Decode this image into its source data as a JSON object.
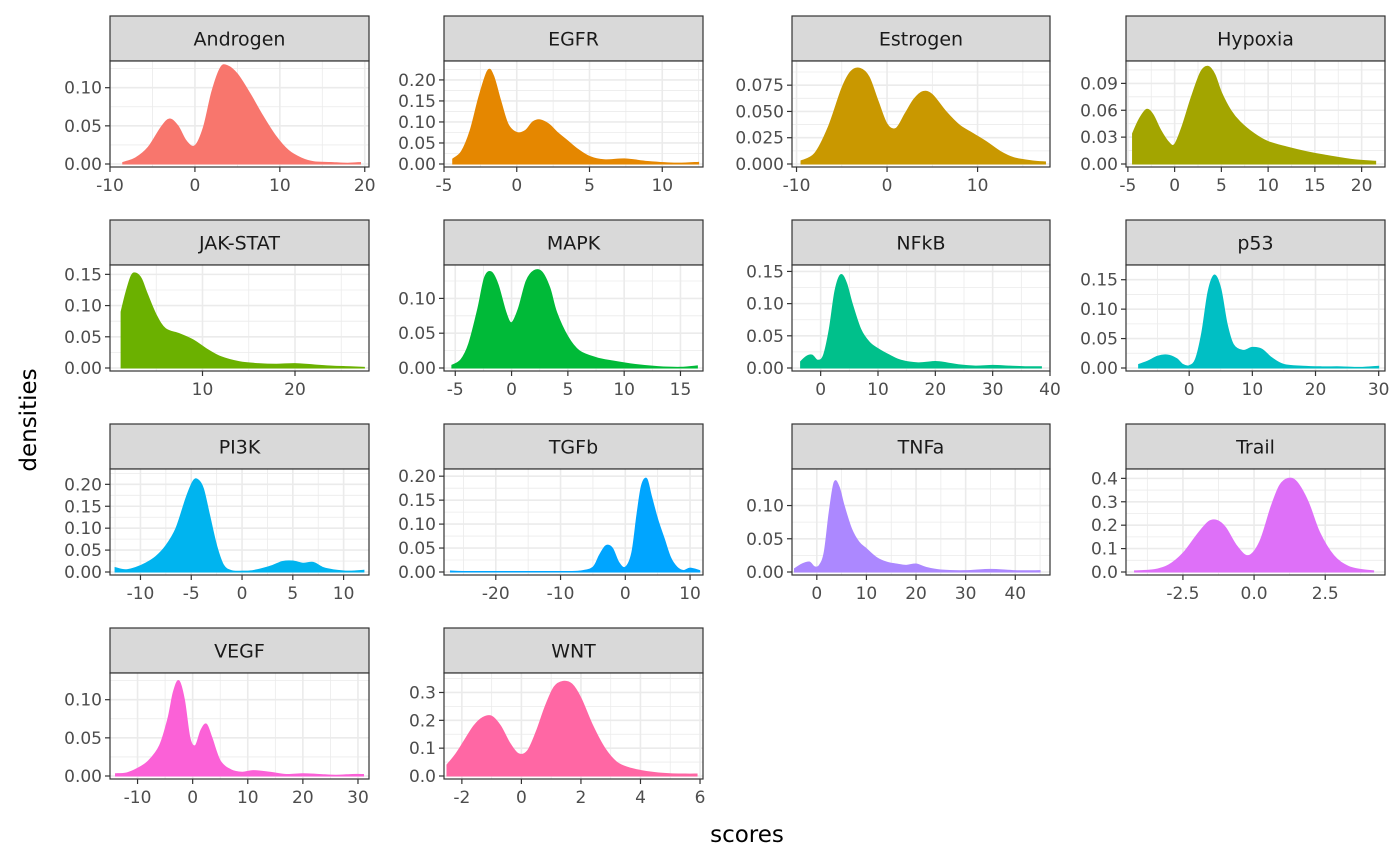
{
  "chart_data": {
    "type": "area",
    "subtype": "faceted density plot",
    "xlabel": "scores",
    "ylabel": "densities",
    "facet_layout": {
      "rows": 4,
      "cols": 4
    },
    "grid": true,
    "legend": "none",
    "panel_background": "#ffffff",
    "strip_background": "#d9d9d9",
    "grid_color": "#ebebeb",
    "panels": [
      {
        "name": "Androgen",
        "color": "#F8766D",
        "xlim": [
          -10,
          20.5
        ],
        "ylim": [
          0,
          0.135
        ],
        "xticks": [
          -10,
          0,
          10,
          20
        ],
        "xtick_labels": [
          "-10",
          "0",
          "10",
          "20"
        ],
        "yticks": [
          0,
          0.05,
          0.1
        ],
        "ytick_labels": [
          "0.00",
          "0.05",
          "0.10"
        ],
        "x": [
          -8.5,
          -7,
          -5.5,
          -4,
          -3,
          -2,
          -1,
          0,
          1,
          2,
          3,
          3.8,
          5,
          6.5,
          8,
          9.5,
          11,
          12.5,
          14,
          16,
          18,
          19.5
        ],
        "y": [
          0.002,
          0.008,
          0.022,
          0.048,
          0.059,
          0.05,
          0.03,
          0.024,
          0.048,
          0.095,
          0.126,
          0.129,
          0.118,
          0.092,
          0.063,
          0.037,
          0.018,
          0.008,
          0.003,
          0.002,
          0.001,
          0.002
        ]
      },
      {
        "name": "EGFR",
        "color": "#E58700",
        "xlim": [
          -5,
          12.8
        ],
        "ylim": [
          0,
          0.245
        ],
        "xticks": [
          -5,
          0,
          5,
          10
        ],
        "xtick_labels": [
          "-5",
          "0",
          "5",
          "10"
        ],
        "yticks": [
          0,
          0.05,
          0.1,
          0.15,
          0.2
        ],
        "ytick_labels": [
          "0.00",
          "0.05",
          "0.10",
          "0.15",
          "0.20"
        ],
        "x": [
          -4.4,
          -3.8,
          -3.2,
          -2.6,
          -2.0,
          -1.6,
          -1.1,
          -0.6,
          0,
          0.6,
          1.1,
          1.6,
          2.2,
          2.8,
          3.5,
          4.2,
          5,
          6,
          7.5,
          9,
          11,
          12.5
        ],
        "y": [
          0.012,
          0.03,
          0.08,
          0.16,
          0.222,
          0.21,
          0.15,
          0.095,
          0.075,
          0.08,
          0.1,
          0.105,
          0.095,
          0.075,
          0.055,
          0.035,
          0.018,
          0.01,
          0.012,
          0.006,
          0.002,
          0.004
        ]
      },
      {
        "name": "Estrogen",
        "color": "#C99800",
        "xlim": [
          -10.5,
          18
        ],
        "ylim": [
          0,
          0.098
        ],
        "xticks": [
          -10,
          0,
          10
        ],
        "xtick_labels": [
          "-10",
          "0",
          "10"
        ],
        "yticks": [
          0,
          0.025,
          0.05,
          0.075
        ],
        "ytick_labels": [
          "0.000",
          "0.025",
          "0.050",
          "0.075"
        ],
        "x": [
          -9.5,
          -8,
          -6.5,
          -5,
          -4,
          -3,
          -2,
          -1,
          0,
          1,
          2,
          3,
          4,
          5,
          6.5,
          8,
          9.5,
          11,
          12.5,
          14,
          16,
          17.5
        ],
        "y": [
          0.003,
          0.01,
          0.035,
          0.072,
          0.088,
          0.091,
          0.083,
          0.06,
          0.038,
          0.034,
          0.048,
          0.062,
          0.069,
          0.066,
          0.05,
          0.037,
          0.029,
          0.021,
          0.012,
          0.006,
          0.003,
          0.002
        ]
      },
      {
        "name": "Hypoxia",
        "color": "#A3A500",
        "xlim": [
          -5.2,
          22.5
        ],
        "ylim": [
          0,
          0.115
        ],
        "xticks": [
          -5,
          0,
          5,
          10,
          15,
          20
        ],
        "xtick_labels": [
          "-5",
          "0",
          "5",
          "10",
          "15",
          "20"
        ],
        "yticks": [
          0,
          0.03,
          0.06,
          0.09
        ],
        "ytick_labels": [
          "0.00",
          "0.03",
          "0.06",
          "0.09"
        ],
        "x": [
          -4.5,
          -3.8,
          -3,
          -2.3,
          -1.5,
          -0.6,
          0,
          0.8,
          1.8,
          2.8,
          3.6,
          4.3,
          5,
          6,
          7,
          8.5,
          10,
          12,
          14,
          16,
          19,
          21.5
        ],
        "y": [
          0.034,
          0.05,
          0.061,
          0.055,
          0.038,
          0.024,
          0.022,
          0.042,
          0.075,
          0.103,
          0.109,
          0.1,
          0.08,
          0.06,
          0.047,
          0.034,
          0.025,
          0.019,
          0.014,
          0.01,
          0.005,
          0.003
        ]
      },
      {
        "name": "JAK-STAT",
        "color": "#6BB100",
        "xlim": [
          0,
          28
        ],
        "ylim": [
          0,
          0.165
        ],
        "xticks": [
          10,
          20
        ],
        "xtick_labels": [
          "10",
          "20"
        ],
        "yticks": [
          0,
          0.05,
          0.1,
          0.15
        ],
        "ytick_labels": [
          "0.00",
          "0.05",
          "0.10",
          "0.15"
        ],
        "x": [
          1.2,
          1.7,
          2.3,
          2.8,
          3.4,
          4,
          5,
          6,
          7.5,
          9,
          10.5,
          12,
          14,
          16,
          18,
          20,
          22,
          24,
          26,
          27.5
        ],
        "y": [
          0.09,
          0.12,
          0.148,
          0.152,
          0.143,
          0.12,
          0.085,
          0.063,
          0.055,
          0.045,
          0.03,
          0.018,
          0.01,
          0.007,
          0.006,
          0.007,
          0.005,
          0.003,
          0.002,
          0.001
        ]
      },
      {
        "name": "MAPK",
        "color": "#00BA38",
        "xlim": [
          -6,
          17
        ],
        "ylim": [
          0,
          0.148
        ],
        "xticks": [
          -5,
          0,
          5,
          10,
          15
        ],
        "xtick_labels": [
          "-5",
          "0",
          "5",
          "10",
          "15"
        ],
        "yticks": [
          0,
          0.05,
          0.1
        ],
        "ytick_labels": [
          "0.00",
          "0.05",
          "0.10"
        ],
        "x": [
          -5.3,
          -4.5,
          -3.8,
          -3,
          -2.4,
          -1.8,
          -1.2,
          -0.5,
          0,
          0.6,
          1.3,
          2,
          2.7,
          3.4,
          4,
          5,
          6,
          7.5,
          9,
          11,
          13,
          15,
          16.5
        ],
        "y": [
          0.004,
          0.012,
          0.035,
          0.085,
          0.13,
          0.138,
          0.12,
          0.08,
          0.065,
          0.085,
          0.125,
          0.14,
          0.138,
          0.115,
          0.08,
          0.045,
          0.025,
          0.015,
          0.01,
          0.005,
          0.002,
          0.001,
          0.003
        ]
      },
      {
        "name": "NFkB",
        "color": "#00C08B",
        "xlim": [
          -5,
          40
        ],
        "ylim": [
          0,
          0.16
        ],
        "xticks": [
          0,
          10,
          20,
          30,
          40
        ],
        "xtick_labels": [
          "0",
          "10",
          "20",
          "30",
          "40"
        ],
        "yticks": [
          0,
          0.05,
          0.1,
          0.15
        ],
        "ytick_labels": [
          "0.00",
          "0.05",
          "0.10",
          "0.15"
        ],
        "x": [
          -3.5,
          -2.5,
          -1.5,
          -0.5,
          0.5,
          1.5,
          2.5,
          3.5,
          4.5,
          5.5,
          7,
          8.5,
          10,
          12,
          14,
          17,
          20,
          22,
          24,
          27,
          30,
          33,
          36,
          38.5
        ],
        "y": [
          0.01,
          0.018,
          0.02,
          0.012,
          0.02,
          0.06,
          0.12,
          0.145,
          0.132,
          0.1,
          0.06,
          0.04,
          0.03,
          0.02,
          0.012,
          0.008,
          0.01,
          0.008,
          0.005,
          0.003,
          0.004,
          0.003,
          0.002,
          0.002
        ]
      },
      {
        "name": "p53",
        "color": "#00BFC4",
        "xlim": [
          -10,
          31
        ],
        "ylim": [
          0,
          0.175
        ],
        "xticks": [
          0,
          10,
          20,
          30
        ],
        "xtick_labels": [
          "0",
          "10",
          "20",
          "30"
        ],
        "yticks": [
          0,
          0.05,
          0.1,
          0.15
        ],
        "ytick_labels": [
          "0.00",
          "0.05",
          "0.10",
          "0.15"
        ],
        "x": [
          -8,
          -6.5,
          -5,
          -3.5,
          -2,
          -1,
          0,
          1,
          2,
          3,
          4,
          5,
          6,
          7,
          8.5,
          10,
          11.5,
          13,
          15,
          18,
          21,
          24,
          27,
          30
        ],
        "y": [
          0.006,
          0.012,
          0.02,
          0.022,
          0.016,
          0.006,
          0.004,
          0.015,
          0.06,
          0.13,
          0.158,
          0.135,
          0.075,
          0.04,
          0.03,
          0.035,
          0.032,
          0.018,
          0.006,
          0.003,
          0.002,
          0.002,
          0.001,
          0.003
        ]
      },
      {
        "name": "PI3K",
        "color": "#00B4EF",
        "xlim": [
          -13,
          12.5
        ],
        "ylim": [
          0,
          0.235
        ],
        "xticks": [
          -10,
          -5,
          0,
          5,
          10
        ],
        "xtick_labels": [
          "-10",
          "-5",
          "0",
          "5",
          "10"
        ],
        "yticks": [
          0,
          0.05,
          0.1,
          0.15,
          0.2
        ],
        "ytick_labels": [
          "0.00",
          "0.05",
          "0.10",
          "0.15",
          "0.20"
        ],
        "x": [
          -12.5,
          -11.5,
          -10.5,
          -9.5,
          -8.5,
          -7.5,
          -6.5,
          -5.5,
          -4.8,
          -4.3,
          -3.8,
          -3.2,
          -2.5,
          -1.8,
          -1,
          0,
          1,
          2,
          3,
          4,
          5,
          6,
          7,
          8,
          9,
          10.5,
          12
        ],
        "y": [
          0.01,
          0.005,
          0.01,
          0.02,
          0.035,
          0.06,
          0.1,
          0.17,
          0.208,
          0.21,
          0.19,
          0.13,
          0.06,
          0.015,
          0.003,
          0.002,
          0.003,
          0.008,
          0.015,
          0.024,
          0.025,
          0.02,
          0.022,
          0.01,
          0.005,
          0.002,
          0.004
        ]
      },
      {
        "name": "TGFb",
        "color": "#00A5FF",
        "xlim": [
          -28,
          12
        ],
        "ylim": [
          0,
          0.215
        ],
        "xticks": [
          -20,
          -10,
          0,
          10
        ],
        "xtick_labels": [
          "-20",
          "-10",
          "0",
          "10"
        ],
        "yticks": [
          0,
          0.05,
          0.1,
          0.15,
          0.2
        ],
        "ytick_labels": [
          "0.00",
          "0.05",
          "0.10",
          "0.15",
          "0.20"
        ],
        "x": [
          -27,
          -25,
          -20,
          -15,
          -10,
          -7,
          -5,
          -4,
          -3,
          -2,
          -1,
          0,
          1,
          1.8,
          2.5,
          3.3,
          4,
          5,
          6,
          7,
          8,
          9,
          10,
          11.5
        ],
        "y": [
          0.002,
          0.001,
          0.001,
          0.001,
          0.001,
          0.002,
          0.01,
          0.035,
          0.055,
          0.05,
          0.02,
          0.01,
          0.04,
          0.12,
          0.18,
          0.195,
          0.16,
          0.11,
          0.07,
          0.03,
          0.01,
          0.003,
          0.008,
          0.003
        ]
      },
      {
        "name": "TNFa",
        "color": "#AC88FF",
        "xlim": [
          -5,
          47
        ],
        "ylim": [
          0,
          0.155
        ],
        "xticks": [
          0,
          10,
          20,
          30,
          40
        ],
        "xtick_labels": [
          "0",
          "10",
          "20",
          "30",
          "40"
        ],
        "yticks": [
          0,
          0.05,
          0.1
        ],
        "ytick_labels": [
          "0.00",
          "0.05",
          "0.10"
        ],
        "x": [
          -4.5,
          -3,
          -1.5,
          -0.5,
          0.5,
          1.5,
          2.5,
          3.5,
          4.5,
          5.5,
          7,
          8.5,
          10,
          12,
          14,
          16,
          18,
          20,
          22,
          25,
          30,
          35,
          40,
          45
        ],
        "y": [
          0.005,
          0.012,
          0.015,
          0.008,
          0.01,
          0.03,
          0.09,
          0.135,
          0.128,
          0.1,
          0.065,
          0.045,
          0.035,
          0.022,
          0.015,
          0.012,
          0.01,
          0.012,
          0.007,
          0.003,
          0.002,
          0.004,
          0.002,
          0.002
        ]
      },
      {
        "name": "Trail",
        "color": "#DE70F8",
        "xlim": [
          -4.5,
          4.6
        ],
        "ylim": [
          0,
          0.44
        ],
        "xticks": [
          -2.5,
          0,
          2.5
        ],
        "xtick_labels": [
          "-2.5",
          "0.0",
          "2.5"
        ],
        "yticks": [
          0,
          0.1,
          0.2,
          0.3,
          0.4
        ],
        "ytick_labels": [
          "0.0",
          "0.1",
          "0.2",
          "0.3",
          "0.4"
        ],
        "x": [
          -4.2,
          -3.5,
          -3,
          -2.5,
          -2,
          -1.6,
          -1.3,
          -1,
          -0.6,
          -0.2,
          0.2,
          0.6,
          0.9,
          1.2,
          1.5,
          1.9,
          2.3,
          2.8,
          3.3,
          3.8,
          4.2
        ],
        "y": [
          0.005,
          0.01,
          0.03,
          0.08,
          0.16,
          0.215,
          0.22,
          0.19,
          0.11,
          0.07,
          0.13,
          0.28,
          0.37,
          0.4,
          0.385,
          0.3,
          0.17,
          0.07,
          0.025,
          0.01,
          0.005
        ]
      },
      {
        "name": "VEGF",
        "color": "#FB61D7",
        "xlim": [
          -15,
          32
        ],
        "ylim": [
          0,
          0.135
        ],
        "xticks": [
          -10,
          0,
          10,
          20,
          30
        ],
        "xtick_labels": [
          "-10",
          "0",
          "10",
          "20",
          "30"
        ],
        "yticks": [
          0,
          0.05,
          0.1
        ],
        "ytick_labels": [
          "0.00",
          "0.05",
          "0.10"
        ],
        "x": [
          -14,
          -12,
          -10,
          -8,
          -6,
          -4.5,
          -3.5,
          -2.5,
          -1.5,
          -0.5,
          0.5,
          1.5,
          2.5,
          3.5,
          5,
          7,
          9,
          11,
          14,
          17,
          20,
          23,
          26,
          29,
          31
        ],
        "y": [
          0.003,
          0.004,
          0.01,
          0.02,
          0.04,
          0.075,
          0.11,
          0.125,
          0.1,
          0.05,
          0.04,
          0.06,
          0.068,
          0.05,
          0.02,
          0.008,
          0.005,
          0.007,
          0.005,
          0.002,
          0.003,
          0.002,
          0.001,
          0.002,
          0.002
        ]
      },
      {
        "name": "WNT",
        "color": "#FF67A4",
        "xlim": [
          -2.6,
          6.1
        ],
        "ylim": [
          0,
          0.37
        ],
        "xticks": [
          -2,
          0,
          2,
          4,
          6
        ],
        "xtick_labels": [
          "-2",
          "0",
          "2",
          "4",
          "6"
        ],
        "yticks": [
          0,
          0.1,
          0.2,
          0.3
        ],
        "ytick_labels": [
          "0.0",
          "0.1",
          "0.2",
          "0.3"
        ],
        "x": [
          -2.5,
          -2.2,
          -1.9,
          -1.6,
          -1.3,
          -1.0,
          -0.7,
          -0.4,
          -0.1,
          0.2,
          0.5,
          0.8,
          1.1,
          1.4,
          1.7,
          2.0,
          2.4,
          2.8,
          3.2,
          3.6,
          4.0,
          4.5,
          5.0,
          5.5,
          5.9
        ],
        "y": [
          0.04,
          0.08,
          0.13,
          0.18,
          0.21,
          0.215,
          0.18,
          0.12,
          0.08,
          0.09,
          0.16,
          0.25,
          0.32,
          0.34,
          0.33,
          0.28,
          0.18,
          0.1,
          0.05,
          0.03,
          0.02,
          0.012,
          0.008,
          0.007,
          0.007
        ]
      }
    ]
  }
}
